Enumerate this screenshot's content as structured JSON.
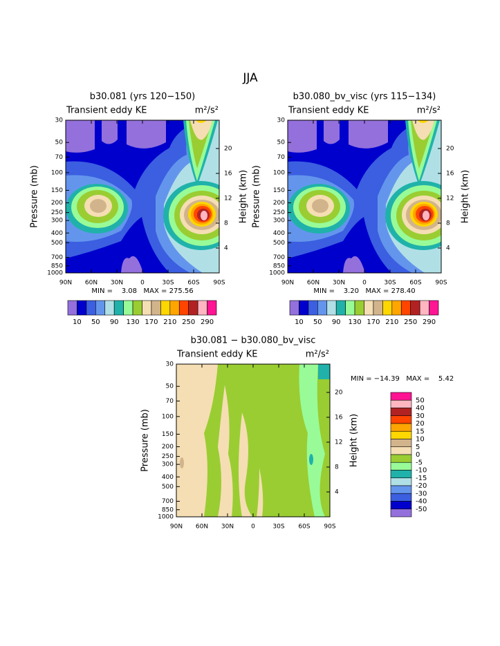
{
  "title": "JJA",
  "chart_data": [
    {
      "type": "contour",
      "title": "b30.081 (yrs 120−150)",
      "subtitle": "Transient eddy KE",
      "units": "m²/s²",
      "ylabel": "Pressure (mb)",
      "y2label": "Height (km)",
      "xlim": [
        90,
        -90
      ],
      "xticks": [
        {
          "value": 90,
          "label": "90N"
        },
        {
          "value": 60,
          "label": "60N"
        },
        {
          "value": 30,
          "label": "30N"
        },
        0,
        {
          "value": -30,
          "label": "30S"
        },
        {
          "value": -60,
          "label": "60S"
        },
        {
          "value": -90,
          "label": "90S"
        }
      ],
      "ylim": [
        1000,
        30
      ],
      "yscale": "log",
      "yticks": [
        30,
        50,
        70,
        100,
        150,
        200,
        250,
        300,
        400,
        500,
        700,
        850,
        1000
      ],
      "y2lim": [
        0,
        24.55
      ],
      "y2ticks": [
        20,
        16,
        12,
        8,
        4
      ],
      "stats": "MIN =    3.08   MAX = 275.56",
      "colorbar": {
        "orientation": "horizontal",
        "colors": [
          "#9370db",
          "#0000cd",
          "#3b5fe0",
          "#6495ed",
          "#b0e0e6",
          "#20b2aa",
          "#98fb98",
          "#9acd32",
          "#f5deb3",
          "#d2b48c",
          "#ffd700",
          "#ffa500",
          "#ff4500",
          "#b22222",
          "#ffb6c1",
          "#ff1493"
        ],
        "labels": [
          10,
          50,
          90,
          130,
          170,
          210,
          250,
          290
        ]
      }
    },
    {
      "type": "contour",
      "title": "b30.080_bv_visc (yrs 115−134)",
      "subtitle": "Transient eddy KE",
      "units": "m²/s²",
      "ylabel": "Pressure (mb)",
      "y2label": "Height (km)",
      "xlim": [
        90,
        -90
      ],
      "xticks": [
        {
          "value": 90,
          "label": "90N"
        },
        {
          "value": 60,
          "label": "60N"
        },
        {
          "value": 30,
          "label": "30N"
        },
        0,
        {
          "value": -30,
          "label": "30S"
        },
        {
          "value": -60,
          "label": "60S"
        },
        {
          "value": -90,
          "label": "90S"
        }
      ],
      "ylim": [
        1000,
        30
      ],
      "yscale": "log",
      "yticks": [
        30,
        50,
        70,
        100,
        150,
        200,
        250,
        300,
        400,
        500,
        700,
        850,
        1000
      ],
      "y2lim": [
        0,
        24.55
      ],
      "y2ticks": [
        20,
        16,
        12,
        8,
        4
      ],
      "stats": "MIN =    3.20   MAX = 278.40",
      "colorbar": {
        "orientation": "horizontal",
        "colors": [
          "#9370db",
          "#0000cd",
          "#3b5fe0",
          "#6495ed",
          "#b0e0e6",
          "#20b2aa",
          "#98fb98",
          "#9acd32",
          "#f5deb3",
          "#d2b48c",
          "#ffd700",
          "#ffa500",
          "#ff4500",
          "#b22222",
          "#ffb6c1",
          "#ff1493"
        ],
        "labels": [
          10,
          50,
          90,
          130,
          170,
          210,
          250,
          290
        ]
      }
    },
    {
      "type": "contour",
      "title": "b30.081 − b30.080_bv_visc",
      "subtitle": "Transient eddy KE",
      "units": "m²/s²",
      "ylabel": "Pressure (mb)",
      "y2label": "Height (km)",
      "xlim": [
        90,
        -90
      ],
      "xticks": [
        {
          "value": 90,
          "label": "90N"
        },
        {
          "value": 60,
          "label": "60N"
        },
        {
          "value": 30,
          "label": "30N"
        },
        0,
        {
          "value": -30,
          "label": "30S"
        },
        {
          "value": -60,
          "label": "60S"
        },
        {
          "value": -90,
          "label": "90S"
        }
      ],
      "ylim": [
        1000,
        30
      ],
      "yscale": "log",
      "yticks": [
        30,
        50,
        70,
        100,
        150,
        200,
        250,
        300,
        400,
        500,
        700,
        850,
        1000
      ],
      "y2lim": [
        0,
        24.55
      ],
      "y2ticks": [
        20,
        16,
        12,
        8,
        4
      ],
      "stats": "MIN = −14.39   MAX =    5.42",
      "colorbar": {
        "orientation": "vertical",
        "colors": [
          "#ff1493",
          "#ffb6c1",
          "#b22222",
          "#ff4500",
          "#ffa500",
          "#ffd700",
          "#d2b48c",
          "#f5deb3",
          "#9acd32",
          "#98fb98",
          "#20b2aa",
          "#b0e0e6",
          "#6495ed",
          "#3b5fe0",
          "#0000cd",
          "#9370db"
        ],
        "labels": [
          50,
          40,
          30,
          20,
          15,
          10,
          5,
          0,
          -5,
          -10,
          -15,
          -20,
          -30,
          -40,
          -50
        ]
      }
    }
  ]
}
